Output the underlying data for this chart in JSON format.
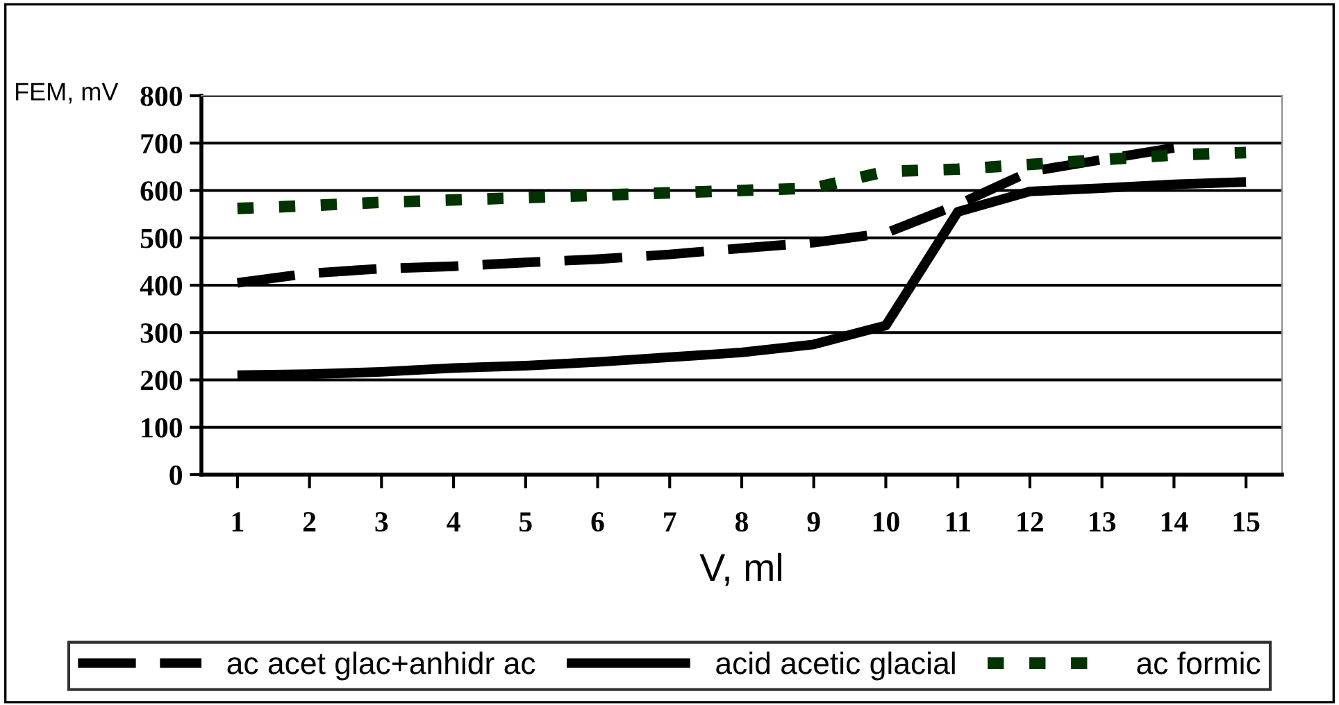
{
  "chart_data": {
    "type": "line",
    "ylabel": "FEM, mV",
    "xlabel": "V, ml",
    "categories": [
      "1",
      "2",
      "3",
      "4",
      "5",
      "6",
      "7",
      "8",
      "9",
      "10",
      "11",
      "12",
      "13",
      "14",
      "15"
    ],
    "series": [
      {
        "name": "ac acet glac+anhidr ac",
        "color": "#000000",
        "line_style": "dashed",
        "values": [
          405,
          425,
          435,
          440,
          448,
          455,
          465,
          478,
          490,
          510,
          570,
          640,
          665,
          690,
          null
        ]
      },
      {
        "name": "acid acetic glacial",
        "color": "#000000",
        "line_style": "solid",
        "values": [
          210,
          212,
          217,
          225,
          230,
          238,
          248,
          258,
          275,
          315,
          555,
          598,
          605,
          613,
          618
        ]
      },
      {
        "name": "ac formic",
        "color": "#003300",
        "line_style": "dotted",
        "values": [
          562,
          568,
          575,
          580,
          585,
          590,
          595,
          600,
          605,
          640,
          645,
          655,
          665,
          675,
          680
        ]
      }
    ],
    "ylim": [
      0,
      800
    ],
    "yticks": [
      0,
      100,
      200,
      300,
      400,
      500,
      600,
      700,
      800
    ],
    "grid": "y",
    "legend": "bottom",
    "marker": "none"
  }
}
